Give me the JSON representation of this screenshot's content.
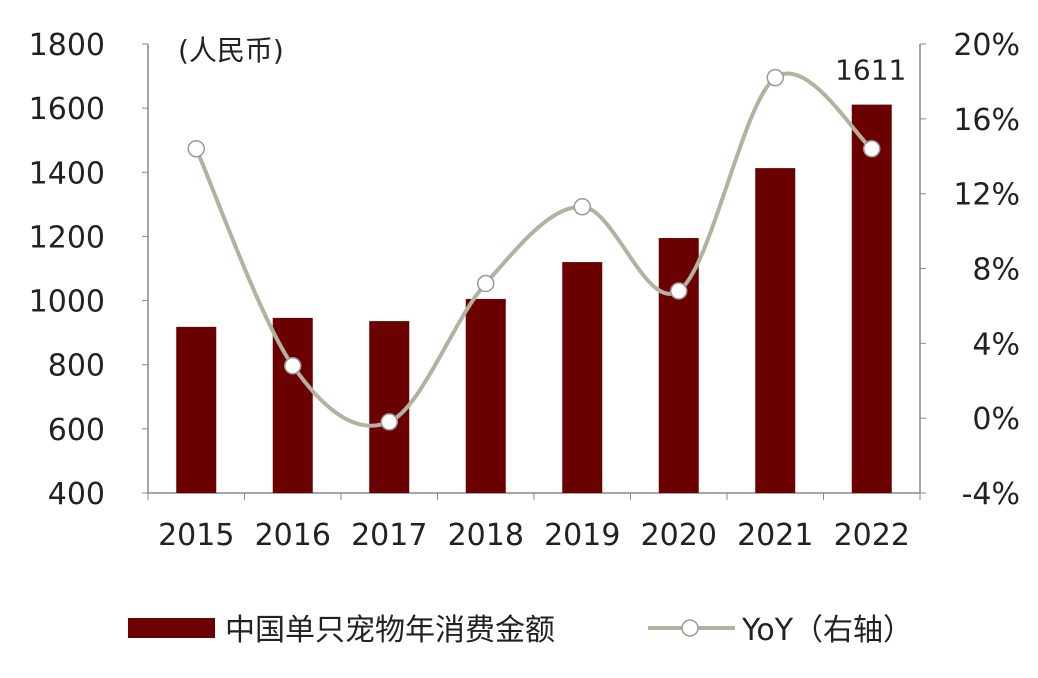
{
  "chart_data": {
    "type": "bar+line",
    "unit_label": "(人民币)",
    "categories": [
      "2015",
      "2016",
      "2017",
      "2018",
      "2019",
      "2020",
      "2021",
      "2022"
    ],
    "series": [
      {
        "name": "中国单只宠物年消费金额",
        "type": "bar",
        "axis": "left",
        "values": [
          918,
          946,
          936,
          1005,
          1120,
          1195,
          1413,
          1611
        ],
        "color": "#6b0000"
      },
      {
        "name": "YoY（右轴）",
        "type": "line",
        "axis": "right",
        "values": [
          14.4,
          2.8,
          -0.2,
          7.2,
          11.3,
          6.8,
          18.2,
          14.4
        ],
        "color": "#b5b19f"
      }
    ],
    "data_labels": [
      {
        "category": "2022",
        "text": "1611"
      }
    ],
    "left_axis": {
      "range": [
        400,
        1800
      ],
      "ticks": [
        "400",
        "600",
        "800",
        "1000",
        "1200",
        "1400",
        "1600",
        "1800"
      ]
    },
    "right_axis": {
      "range": [
        -4,
        20
      ],
      "ticks": [
        "-4%",
        "0%",
        "4%",
        "8%",
        "12%",
        "16%",
        "20%"
      ]
    },
    "grid": false,
    "legend": "bottom"
  }
}
